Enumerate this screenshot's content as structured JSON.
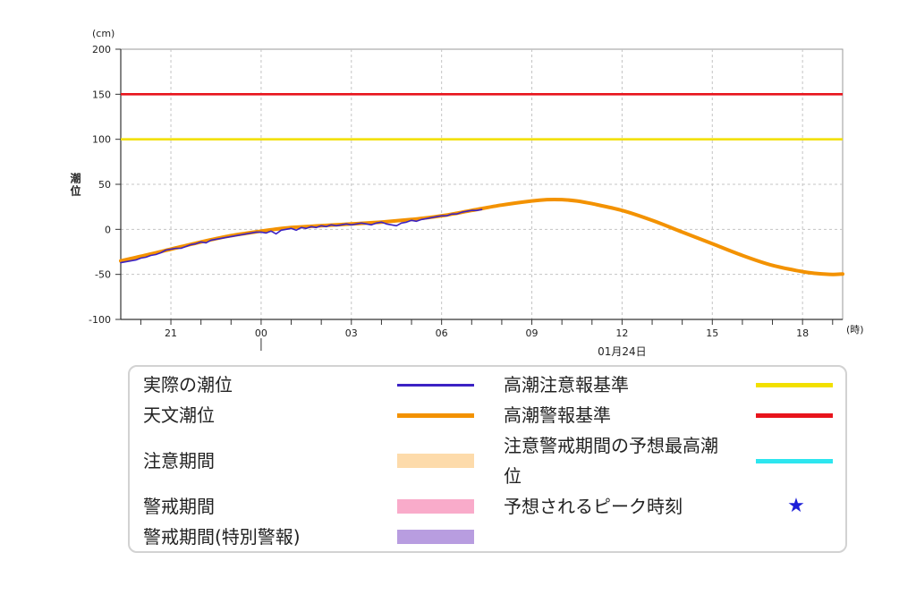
{
  "chart_data": {
    "type": "line",
    "y_unit": "(cm)",
    "ylabel": "潮位",
    "ylim": [
      -100,
      200
    ],
    "yticks": [
      200,
      150,
      100,
      50,
      0,
      -50,
      -100
    ],
    "x_unit": "(時)",
    "xlim": [
      "01-23 19:20",
      "01-24 19:20"
    ],
    "xticks": [
      {
        "time": "01-23 21:00",
        "label": "21"
      },
      {
        "time": "01-24 00:00",
        "label": "00"
      },
      {
        "time": "01-24 03:00",
        "label": "03"
      },
      {
        "time": "01-24 06:00",
        "label": "06"
      },
      {
        "time": "01-24 09:00",
        "label": "09"
      },
      {
        "time": "01-24 12:00",
        "label": "12"
      },
      {
        "time": "01-24 15:00",
        "label": "15"
      },
      {
        "time": "01-24 18:00",
        "label": "18"
      }
    ],
    "date_boundary": "01-24 00:00",
    "date_label": "01月24日",
    "grid": true,
    "legend_placement": "bottom",
    "reference_lines": [
      {
        "name": "高潮注意報基準",
        "value": 100,
        "color": "#f2e000"
      },
      {
        "name": "高潮警報基準",
        "value": 150,
        "color": "#e8141c"
      }
    ],
    "series": [
      {
        "name": "実際の潮位",
        "color": "#3b22c4",
        "points": [
          [
            "01-23 19:20",
            -37
          ],
          [
            "01-23 19:30",
            -36
          ],
          [
            "01-23 19:40",
            -35
          ],
          [
            "01-23 19:50",
            -34
          ],
          [
            "01-23 20:00",
            -32
          ],
          [
            "01-23 20:10",
            -31
          ],
          [
            "01-23 20:20",
            -29
          ],
          [
            "01-23 20:30",
            -28
          ],
          [
            "01-23 20:40",
            -26
          ],
          [
            "01-23 20:50",
            -23
          ],
          [
            "01-23 21:00",
            -22
          ],
          [
            "01-23 21:10",
            -21
          ],
          [
            "01-23 21:20",
            -21
          ],
          [
            "01-23 21:30",
            -19
          ],
          [
            "01-23 21:40",
            -17
          ],
          [
            "01-23 21:50",
            -16
          ],
          [
            "01-23 22:00",
            -14
          ],
          [
            "01-23 22:10",
            -15
          ],
          [
            "01-23 22:20",
            -12
          ],
          [
            "01-23 22:30",
            -11
          ],
          [
            "01-23 22:40",
            -10
          ],
          [
            "01-23 22:50",
            -9
          ],
          [
            "01-23 23:00",
            -8
          ],
          [
            "01-23 23:10",
            -7
          ],
          [
            "01-23 23:20",
            -6
          ],
          [
            "01-23 23:30",
            -5
          ],
          [
            "01-23 23:40",
            -4
          ],
          [
            "01-23 23:50",
            -3
          ],
          [
            "01-24 00:00",
            -3
          ],
          [
            "01-24 00:10",
            -4
          ],
          [
            "01-24 00:20",
            -2
          ],
          [
            "01-24 00:30",
            -5
          ],
          [
            "01-24 00:40",
            -1
          ],
          [
            "01-24 00:50",
            0
          ],
          [
            "01-24 01:00",
            1
          ],
          [
            "01-24 01:10",
            -1
          ],
          [
            "01-24 01:20",
            2
          ],
          [
            "01-24 01:30",
            1
          ],
          [
            "01-24 01:40",
            3
          ],
          [
            "01-24 01:50",
            2
          ],
          [
            "01-24 02:00",
            4
          ],
          [
            "01-24 02:10",
            3
          ],
          [
            "01-24 02:20",
            5
          ],
          [
            "01-24 02:30",
            4
          ],
          [
            "01-24 02:40",
            5
          ],
          [
            "01-24 02:50",
            6
          ],
          [
            "01-24 03:00",
            5
          ],
          [
            "01-24 03:10",
            6
          ],
          [
            "01-24 03:20",
            7
          ],
          [
            "01-24 03:30",
            6
          ],
          [
            "01-24 03:40",
            5
          ],
          [
            "01-24 03:50",
            7
          ],
          [
            "01-24 04:00",
            8
          ],
          [
            "01-24 04:10",
            6
          ],
          [
            "01-24 04:20",
            5
          ],
          [
            "01-24 04:30",
            4
          ],
          [
            "01-24 04:40",
            7
          ],
          [
            "01-24 04:50",
            8
          ],
          [
            "01-24 05:00",
            10
          ],
          [
            "01-24 05:10",
            9
          ],
          [
            "01-24 05:20",
            11
          ],
          [
            "01-24 05:30",
            12
          ],
          [
            "01-24 05:40",
            13
          ],
          [
            "01-24 05:50",
            14
          ],
          [
            "01-24 06:00",
            15
          ],
          [
            "01-24 06:10",
            15
          ],
          [
            "01-24 06:20",
            17
          ],
          [
            "01-24 06:30",
            17
          ],
          [
            "01-24 06:40",
            19
          ],
          [
            "01-24 06:50",
            20
          ],
          [
            "01-24 07:00",
            21
          ],
          [
            "01-24 07:10",
            21
          ],
          [
            "01-24 07:20",
            22
          ]
        ]
      },
      {
        "name": "天文潮位",
        "color": "#f39200",
        "points": [
          [
            "01-23 19:20",
            -35
          ],
          [
            "01-23 20:00",
            -30
          ],
          [
            "01-23 21:00",
            -22
          ],
          [
            "01-23 22:00",
            -14
          ],
          [
            "01-23 23:00",
            -7
          ],
          [
            "01-24 00:00",
            -2
          ],
          [
            "01-24 01:00",
            2
          ],
          [
            "01-24 02:00",
            4
          ],
          [
            "01-24 03:00",
            6
          ],
          [
            "01-24 04:00",
            8
          ],
          [
            "01-24 05:00",
            11
          ],
          [
            "01-24 06:00",
            15
          ],
          [
            "01-24 07:00",
            21
          ],
          [
            "01-24 08:00",
            27
          ],
          [
            "01-24 09:00",
            31.5
          ],
          [
            "01-24 09:30",
            33
          ],
          [
            "01-24 10:00",
            33
          ],
          [
            "01-24 10:30",
            31.5
          ],
          [
            "01-24 11:00",
            28.5
          ],
          [
            "01-24 12:00",
            21
          ],
          [
            "01-24 13:00",
            10
          ],
          [
            "01-24 14:00",
            -3
          ],
          [
            "01-24 15:00",
            -16
          ],
          [
            "01-24 16:00",
            -29
          ],
          [
            "01-24 17:00",
            -40
          ],
          [
            "01-24 18:00",
            -47
          ],
          [
            "01-24 18:30",
            -49
          ],
          [
            "01-24 19:00",
            -50
          ],
          [
            "01-24 19:20",
            -49.5
          ]
        ]
      }
    ]
  },
  "legend": {
    "caution_period": {
      "label": "注意期間",
      "color": "#fddbab"
    },
    "warning_period": {
      "label": "警戒期間",
      "color": "#f9abca"
    },
    "special_warning_period": {
      "label": "警戒期間(特別警報)",
      "color": "#b89de0"
    },
    "predicted_max_tide": {
      "label": "注意警戒期間の予想最高潮位",
      "color": "#2de6ef"
    },
    "peak_time": {
      "label": "予想されるピーク時刻",
      "symbol": "★",
      "color": "#1c1ed8",
      "icon": "star-icon"
    }
  }
}
